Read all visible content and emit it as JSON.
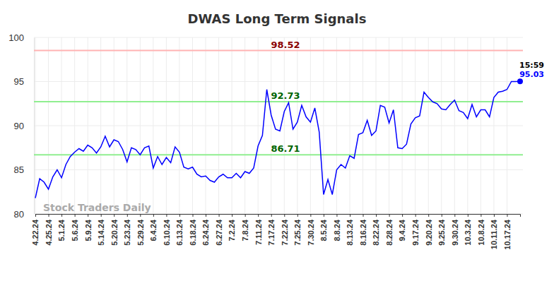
{
  "chart_data": {
    "type": "line",
    "title": "DWAS Long Term Signals",
    "categories": [
      "4.22.24",
      null,
      null,
      "4.25.24",
      null,
      null,
      "5.1.24",
      null,
      null,
      "5.6.24",
      null,
      null,
      "5.9.24",
      null,
      null,
      "5.14.24",
      null,
      null,
      "5.20.24",
      null,
      null,
      "5.23.24",
      null,
      null,
      "5.29.24",
      null,
      null,
      "6.4.24",
      null,
      null,
      "6.10.24",
      null,
      null,
      "6.13.24",
      null,
      null,
      "6.18.24",
      null,
      null,
      "6.24.24",
      null,
      null,
      "6.27.24",
      null,
      null,
      "7.2.24",
      null,
      null,
      "7.8.24",
      null,
      null,
      "7.11.24",
      null,
      null,
      "7.17.24",
      null,
      null,
      "7.22.24",
      null,
      null,
      "7.25.24",
      null,
      null,
      "7.30.24",
      null,
      null,
      "8.5.24",
      null,
      null,
      "8.8.24",
      null,
      null,
      "8.13.24",
      null,
      null,
      "8.16.24",
      null,
      null,
      "8.22.24",
      null,
      null,
      "8.28.24",
      null,
      null,
      "9.4.24",
      null,
      null,
      "9.17.24",
      null,
      null,
      "9.20.24",
      null,
      null,
      "9.25.24",
      null,
      null,
      "9.30.24",
      null,
      null,
      "10.3.24",
      null,
      null,
      "10.8.24",
      null,
      null,
      "10.11.24",
      null,
      null,
      "10.17.24",
      null,
      null,
      null
    ],
    "series": [
      {
        "color": "#0000ff",
        "values": [
          81.8,
          84.0,
          83.6,
          82.8,
          84.2,
          85.0,
          84.1,
          85.6,
          86.5,
          87.0,
          87.4,
          87.1,
          87.8,
          87.5,
          86.9,
          87.6,
          88.8,
          87.6,
          88.4,
          88.2,
          87.3,
          85.9,
          87.5,
          87.3,
          86.7,
          87.5,
          87.7,
          85.2,
          86.5,
          85.6,
          86.4,
          85.8,
          87.6,
          87.0,
          85.3,
          85.1,
          85.3,
          84.5,
          84.2,
          84.3,
          83.8,
          83.6,
          84.2,
          84.5,
          84.1,
          84.1,
          84.6,
          84.1,
          84.8,
          84.6,
          85.2,
          87.7,
          88.9,
          94.1,
          91.2,
          89.6,
          89.4,
          91.6,
          92.6,
          89.6,
          90.4,
          92.3,
          91.0,
          90.4,
          92.0,
          89.3,
          82.2,
          83.9,
          82.2,
          85.0,
          85.6,
          85.2,
          86.6,
          86.3,
          89.0,
          89.2,
          90.6,
          88.9,
          89.4,
          92.3,
          92.1,
          90.3,
          91.8,
          87.5,
          87.4,
          87.9,
          90.2,
          90.9,
          91.1,
          93.8,
          93.2,
          92.7,
          92.5,
          91.9,
          91.8,
          92.4,
          92.9,
          91.7,
          91.5,
          90.8,
          92.4,
          91.0,
          91.8,
          91.8,
          91.0,
          93.2,
          93.8,
          93.9,
          94.1,
          95.0,
          95.0,
          95.03
        ]
      }
    ],
    "ylim": [
      80,
      100
    ],
    "yticks": [
      80,
      85,
      90,
      95,
      100
    ],
    "grid": true,
    "annotations": [
      {
        "y": 98.52,
        "label": "98.52",
        "color": "#ffb3b3",
        "label_color": "#8b0000"
      },
      {
        "y": 92.73,
        "label": "92.73",
        "color": "#90ee90",
        "label_color": "#006400"
      },
      {
        "y": 86.71,
        "label": "86.71",
        "color": "#90ee90",
        "label_color": "#006400"
      }
    ],
    "last_point": {
      "time": "15:59",
      "value_label": "95.03"
    },
    "watermark": "Stock Traders Daily"
  }
}
